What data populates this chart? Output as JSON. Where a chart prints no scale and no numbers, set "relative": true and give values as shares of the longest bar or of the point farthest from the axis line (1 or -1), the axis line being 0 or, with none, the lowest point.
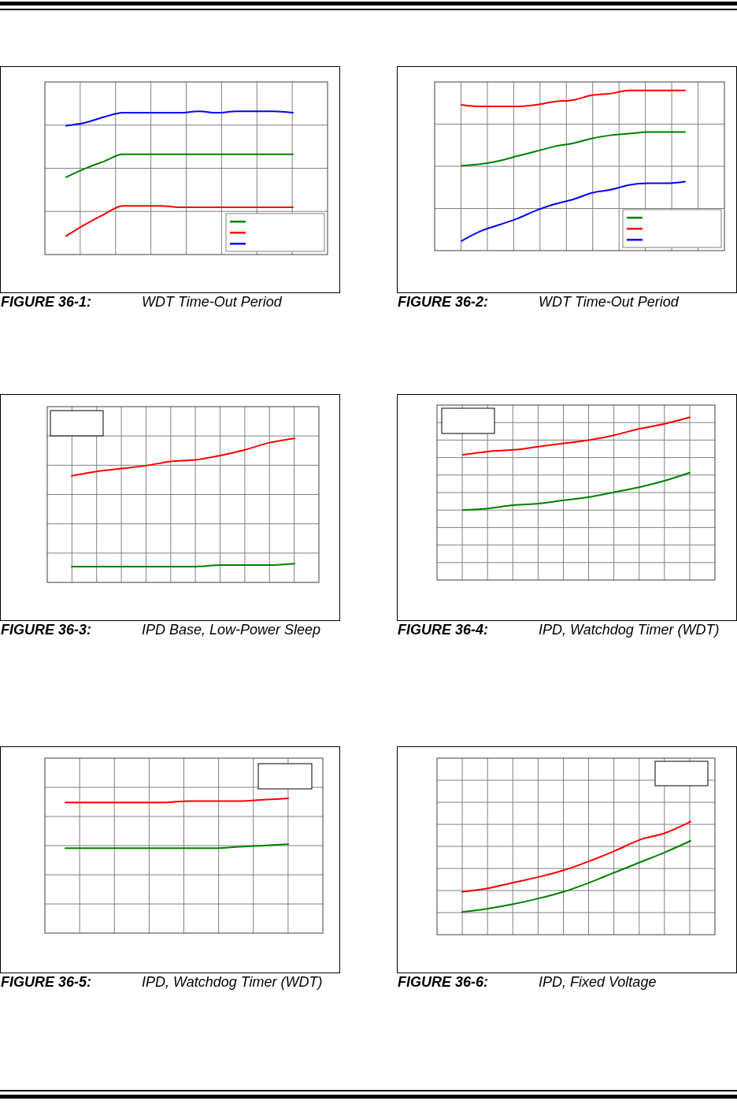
{
  "chart_data": [
    {
      "type": "line",
      "title": "FIGURE 36-1:",
      "subtitle": "WDT Time-Out Period",
      "relative": true,
      "grid": true,
      "categories": [
        null,
        null,
        null,
        null,
        null,
        null,
        null,
        null,
        null,
        null,
        null,
        null,
        null
      ],
      "series": [
        {
          "color": "#008000",
          "values": [
            0.54,
            0.6,
            0.65,
            0.7,
            0.7,
            0.7,
            0.7,
            0.7,
            0.7,
            0.7,
            0.7,
            0.7,
            0.7
          ]
        },
        {
          "color": "#ff0000",
          "values": [
            0.13,
            0.21,
            0.28,
            0.34,
            0.34,
            0.34,
            0.33,
            0.33,
            0.33,
            0.33,
            0.33,
            0.33,
            0.33
          ]
        },
        {
          "color": "#0000ff",
          "values": [
            0.9,
            0.92,
            0.96,
            0.99,
            0.99,
            0.99,
            0.99,
            1,
            0.99,
            1,
            1,
            1,
            0.99
          ]
        }
      ]
    },
    {
      "type": "line",
      "title": "FIGURE 36-2:",
      "subtitle": "WDT Time-Out Period",
      "relative": true,
      "grid": true,
      "categories": [
        null,
        null,
        null,
        null,
        null,
        null,
        null,
        null,
        null,
        null,
        null,
        null,
        null
      ],
      "series": [
        {
          "color": "#008000",
          "values": [
            0.53,
            0.54,
            0.56,
            0.59,
            0.62,
            0.65,
            0.67,
            0.7,
            0.72,
            0.73,
            0.74,
            0.74,
            0.74
          ]
        },
        {
          "color": "#ff0000",
          "values": [
            0.91,
            0.9,
            0.9,
            0.9,
            0.91,
            0.93,
            0.94,
            0.97,
            0.98,
            1,
            1,
            1,
            1
          ]
        },
        {
          "color": "#0000ff",
          "values": [
            0.06,
            0.12,
            0.16,
            0.2,
            0.25,
            0.29,
            0.32,
            0.36,
            0.38,
            0.41,
            0.42,
            0.42,
            0.43
          ]
        }
      ]
    },
    {
      "type": "line",
      "title": "FIGURE 36-3:",
      "subtitle": "IPD Base, Low-Power Sleep",
      "relative": true,
      "grid": true,
      "categories": [
        null,
        null,
        null,
        null,
        null,
        null,
        null,
        null,
        null,
        null
      ],
      "series": [
        {
          "color": "#ff0000",
          "values": [
            0.74,
            0.77,
            0.79,
            0.81,
            0.84,
            0.85,
            0.88,
            0.92,
            0.97,
            1
          ]
        },
        {
          "color": "#008000",
          "values": [
            0.11,
            0.11,
            0.11,
            0.11,
            0.11,
            0.11,
            0.12,
            0.12,
            0.12,
            0.13
          ]
        }
      ]
    },
    {
      "type": "line",
      "title": "FIGURE 36-4:",
      "subtitle": "IPD, Watchdog Timer (WDT)",
      "relative": true,
      "grid": true,
      "categories": [
        null,
        null,
        null,
        null,
        null,
        null,
        null,
        null,
        null,
        null
      ],
      "series": [
        {
          "color": "#ff0000",
          "values": [
            0.77,
            0.79,
            0.8,
            0.82,
            0.84,
            0.86,
            0.89,
            0.93,
            0.96,
            1
          ]
        },
        {
          "color": "#008000",
          "values": [
            0.43,
            0.44,
            0.46,
            0.47,
            0.49,
            0.51,
            0.54,
            0.57,
            0.61,
            0.66
          ]
        }
      ]
    },
    {
      "type": "line",
      "title": "FIGURE 36-5:",
      "subtitle": "IPD, Watchdog Timer (WDT)",
      "relative": true,
      "grid": true,
      "categories": [
        null,
        null,
        null,
        null,
        null,
        null,
        null,
        null,
        null,
        null
      ],
      "series": [
        {
          "color": "#ff0000",
          "values": [
            0.97,
            0.97,
            0.97,
            0.97,
            0.97,
            0.98,
            0.98,
            0.98,
            0.99,
            1
          ]
        },
        {
          "color": "#008000",
          "values": [
            0.63,
            0.63,
            0.63,
            0.63,
            0.63,
            0.63,
            0.63,
            0.64,
            0.65,
            0.66
          ]
        }
      ]
    },
    {
      "type": "line",
      "title": "FIGURE 36-6:",
      "subtitle": "IPD, Fixed Voltage",
      "relative": true,
      "grid": true,
      "categories": [
        null,
        null,
        null,
        null,
        null,
        null,
        null,
        null,
        null,
        null
      ],
      "series": [
        {
          "color": "#ff0000",
          "values": [
            0.38,
            0.41,
            0.46,
            0.51,
            0.57,
            0.65,
            0.74,
            0.84,
            0.9,
            1
          ]
        },
        {
          "color": "#008000",
          "values": [
            0.2,
            0.23,
            0.27,
            0.32,
            0.38,
            0.46,
            0.55,
            0.64,
            0.73,
            0.83
          ]
        }
      ]
    }
  ]
}
